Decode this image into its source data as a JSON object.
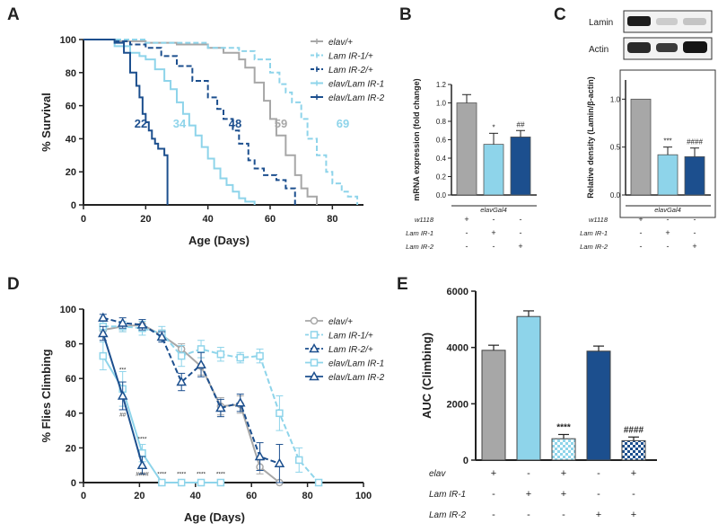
{
  "panel_labels": [
    "A",
    "B",
    "C",
    "D",
    "E"
  ],
  "colors": {
    "grey": "#a7a7a7",
    "light_blue": "#8ed4ea",
    "dark_blue": "#1c4f8e",
    "axis": "#222222"
  },
  "chart_data": [
    {
      "panel": "A",
      "type": "line",
      "xlabel": "Age (Days)",
      "ylabel": "% Survival",
      "xlim": [
        0,
        90
      ],
      "ylim": [
        0,
        100
      ],
      "xticks": [
        0,
        20,
        40,
        60,
        80
      ],
      "yticks": [
        0,
        20,
        40,
        60,
        80,
        100
      ],
      "legend": "top-right",
      "series": [
        {
          "name": "elav/+",
          "color": "grey",
          "dash": false,
          "median": "59",
          "x": [
            0,
            10,
            20,
            30,
            40,
            45,
            50,
            52,
            55,
            58,
            60,
            62,
            65,
            68,
            70,
            72,
            75
          ],
          "y": [
            100,
            99,
            98,
            97,
            95,
            92,
            88,
            83,
            74,
            63,
            52,
            42,
            30,
            18,
            10,
            5,
            0
          ]
        },
        {
          "name": "Lam IR-1/+",
          "color": "light_blue",
          "dash": true,
          "median": "69",
          "x": [
            0,
            20,
            40,
            50,
            55,
            60,
            63,
            65,
            67,
            70,
            72,
            75,
            78,
            80,
            83,
            85,
            88
          ],
          "y": [
            100,
            98,
            95,
            93,
            88,
            80,
            73,
            68,
            62,
            52,
            40,
            30,
            20,
            13,
            8,
            5,
            0
          ]
        },
        {
          "name": "Lam IR-2/+",
          "color": "dark_blue",
          "dash": true,
          "median": "48",
          "x": [
            0,
            10,
            15,
            20,
            25,
            30,
            35,
            40,
            43,
            45,
            48,
            50,
            53,
            55,
            58,
            62,
            65,
            68
          ],
          "y": [
            100,
            99,
            97,
            95,
            90,
            84,
            75,
            65,
            58,
            52,
            45,
            37,
            27,
            22,
            18,
            15,
            10,
            0
          ]
        },
        {
          "name": "elav/Lam IR-1",
          "color": "light_blue",
          "dash": false,
          "median": "34",
          "x": [
            0,
            10,
            15,
            18,
            20,
            23,
            26,
            28,
            30,
            32,
            34,
            36,
            38,
            40,
            42,
            44,
            46,
            48,
            50,
            52,
            55
          ],
          "y": [
            100,
            96,
            92,
            90,
            88,
            82,
            75,
            70,
            62,
            55,
            48,
            42,
            35,
            28,
            22,
            16,
            12,
            8,
            4,
            2,
            0
          ]
        },
        {
          "name": "elav/Lam IR-2",
          "color": "dark_blue",
          "dash": false,
          "median": "22",
          "x": [
            0,
            10,
            13,
            15,
            17,
            18,
            19,
            20,
            21,
            22,
            23,
            24,
            26,
            27
          ],
          "y": [
            100,
            98,
            92,
            80,
            72,
            65,
            55,
            50,
            45,
            40,
            37,
            34,
            30,
            0
          ]
        }
      ]
    },
    {
      "panel": "B",
      "type": "bar",
      "ylabel": "mRNA expression (fold change)",
      "ylim": [
        0,
        1.2
      ],
      "yticks": [
        "0.0",
        "0.2",
        "0.4",
        "0.6",
        "0.8",
        "1.0",
        "1.2"
      ],
      "group_label": "elavGal4",
      "row_labels": [
        "w1118",
        "Lam IR-1",
        "Lam IR-2"
      ],
      "rows": [
        [
          "+",
          "-",
          "-"
        ],
        [
          "-",
          "+",
          "-"
        ],
        [
          "-",
          "-",
          "+"
        ]
      ],
      "values": [
        1.0,
        0.55,
        0.63
      ],
      "errors": [
        0.09,
        0.12,
        0.07
      ],
      "bar_colors": [
        "grey",
        "light_blue",
        "dark_blue"
      ],
      "annotations": [
        "",
        "*",
        "##"
      ]
    },
    {
      "panel": "C",
      "type": "bar",
      "ylabel": "Relative density (Lamin/β-actin)",
      "ylim": [
        0,
        1.2
      ],
      "yticks": [
        "0.0",
        "0.5",
        "1.0"
      ],
      "group_label": "elavGal4",
      "blot_labels": [
        "Lamin",
        "Actin"
      ],
      "row_labels": [
        "w1118",
        "Lam IR-1",
        "Lam IR-2"
      ],
      "rows": [
        [
          "+",
          "-",
          "-"
        ],
        [
          "-",
          "+",
          "-"
        ],
        [
          "-",
          "-",
          "+"
        ]
      ],
      "values": [
        1.0,
        0.42,
        0.4
      ],
      "errors": [
        0.0,
        0.08,
        0.09
      ],
      "bar_colors": [
        "grey",
        "light_blue",
        "dark_blue"
      ],
      "annotations": [
        "",
        "***",
        "####"
      ]
    },
    {
      "panel": "D",
      "type": "line",
      "xlabel": "Age (Days)",
      "ylabel": "% Flies Climbing",
      "xlim": [
        0,
        100
      ],
      "ylim": [
        0,
        100
      ],
      "xticks": [
        0,
        20,
        40,
        60,
        80,
        100
      ],
      "yticks": [
        0,
        20,
        40,
        60,
        80,
        100
      ],
      "legend": "top-right",
      "series": [
        {
          "name": "elav/+",
          "color": "grey",
          "dash": false,
          "marker": "circle",
          "x": [
            7,
            14,
            21,
            28,
            35,
            42,
            49,
            56,
            63,
            70
          ],
          "y": [
            88,
            90,
            91,
            85,
            77,
            67,
            44,
            45,
            9,
            0
          ],
          "err": [
            3,
            3,
            2,
            3,
            3,
            5,
            5,
            5,
            4,
            0
          ]
        },
        {
          "name": "Lam IR-1/+",
          "color": "light_blue",
          "dash": true,
          "marker": "square",
          "x": [
            7,
            14,
            21,
            28,
            35,
            42,
            49,
            56,
            63,
            70,
            77,
            84
          ],
          "y": [
            90,
            90,
            89,
            86,
            73,
            77,
            74,
            72,
            73,
            40,
            13,
            0
          ],
          "err": [
            3,
            3,
            4,
            4,
            6,
            5,
            4,
            3,
            4,
            10,
            7,
            0
          ]
        },
        {
          "name": "Lam IR-2/+",
          "color": "dark_blue",
          "dash": true,
          "marker": "triangle",
          "x": [
            7,
            14,
            21,
            28,
            35,
            42,
            49,
            56,
            63,
            70
          ],
          "y": [
            95,
            92,
            91,
            84,
            58,
            68,
            43,
            46,
            15,
            11
          ],
          "err": [
            2,
            3,
            3,
            3,
            5,
            7,
            5,
            5,
            8,
            11
          ]
        },
        {
          "name": "elav/Lam IR-1",
          "color": "light_blue",
          "dash": false,
          "marker": "square",
          "x": [
            7,
            14,
            21,
            28,
            35,
            42,
            49
          ],
          "y": [
            73,
            54,
            17,
            0,
            0,
            0,
            0
          ],
          "err": [
            8,
            10,
            5,
            0,
            0,
            0,
            0
          ]
        },
        {
          "name": "elav/Lam IR-2",
          "color": "dark_blue",
          "dash": false,
          "marker": "triangle",
          "x": [
            7,
            14,
            21
          ],
          "y": [
            86,
            50,
            10
          ],
          "err": [
            4,
            8,
            5
          ]
        }
      ],
      "annotations": [
        {
          "x": 14,
          "y": 64,
          "text": "***"
        },
        {
          "x": 14,
          "y": 38,
          "text": "##"
        },
        {
          "x": 21,
          "y": 24,
          "text": "****"
        },
        {
          "x": 21,
          "y": 4,
          "text": "####"
        },
        {
          "x": 28,
          "y": 4,
          "text": "****"
        },
        {
          "x": 35,
          "y": 4,
          "text": "****"
        },
        {
          "x": 42,
          "y": 4,
          "text": "****"
        },
        {
          "x": 49,
          "y": 4,
          "text": "****"
        }
      ]
    },
    {
      "panel": "E",
      "type": "bar",
      "ylabel": "AUC (Climbing)",
      "ylim": [
        0,
        6000
      ],
      "yticks": [
        "0",
        "2000",
        "4000",
        "6000"
      ],
      "row_labels": [
        "elav",
        "Lam IR-1",
        "Lam IR-2"
      ],
      "rows": [
        [
          "+",
          "-",
          "+",
          "-",
          "+"
        ],
        [
          "-",
          "+",
          "+",
          "-",
          "-"
        ],
        [
          "-",
          "-",
          "-",
          "+",
          "+"
        ]
      ],
      "values": [
        3900,
        5100,
        760,
        3870,
        690
      ],
      "errors": [
        180,
        200,
        150,
        180,
        130
      ],
      "bar_colors": [
        "grey",
        "light_blue",
        "light_blue",
        "dark_blue",
        "dark_blue"
      ],
      "bar_patterns": [
        "solid",
        "solid",
        "check",
        "solid",
        "check"
      ],
      "annotations": [
        "",
        "",
        "****",
        "",
        "####"
      ]
    }
  ]
}
